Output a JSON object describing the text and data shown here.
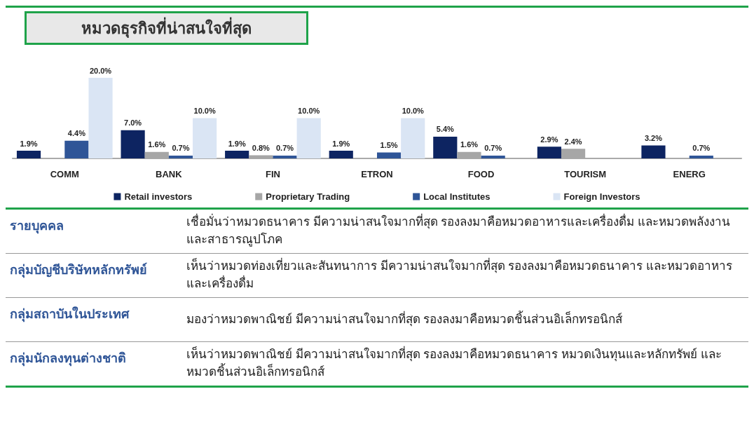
{
  "chart_data": {
    "type": "bar",
    "title": "หมวดธุรกิจที่น่าสนใจที่สุด",
    "categories": [
      "COMM",
      "BANK",
      "FIN",
      "ETRON",
      "FOOD",
      "TOURISM",
      "ENERG"
    ],
    "series": [
      {
        "name": "Retail investors",
        "color": "#0d2461",
        "values": [
          1.9,
          7.0,
          1.9,
          1.9,
          5.4,
          2.9,
          3.2
        ],
        "value_labels": [
          "1.9%",
          "7.0%",
          "1.9%",
          "1.9%",
          "5.4%",
          "2.9%",
          "3.2%"
        ]
      },
      {
        "name": "Proprietary Trading",
        "color": "#a6a6a6",
        "values": [
          null,
          1.6,
          0.8,
          null,
          1.6,
          2.4,
          null
        ],
        "value_labels": [
          null,
          "1.6%",
          "0.8%",
          null,
          "1.6%",
          "2.4%",
          null
        ]
      },
      {
        "name": "Local Institutes",
        "color": "#2f5597",
        "values": [
          4.4,
          0.7,
          0.7,
          1.5,
          0.7,
          null,
          0.7
        ],
        "value_labels": [
          "4.4%",
          "0.7%",
          "0.7%",
          "1.5%",
          "0.7%",
          null,
          "0.7%"
        ]
      },
      {
        "name": "Foreign Investors",
        "color": "#dae5f4",
        "values": [
          20.0,
          10.0,
          10.0,
          10.0,
          null,
          null,
          null
        ],
        "value_labels": [
          "20.0%",
          "10.0%",
          "10.0%",
          "10.0%",
          null,
          null,
          null
        ]
      }
    ],
    "legend": "bottom",
    "grid": false,
    "annotations": [
      "รายบุคคล",
      "เชื่อมั่นว่าหมวดธนาคาร มีความน่าสนใจมากที่สุด รองลงมาคือหมวดอาหารและเครื่องดื่ม และหมวดพลังงานและสาธารณูปโภค",
      "กลุ่มบัญชีบริษัทหลักทรัพย์",
      "เห็นว่าหมวดท่องเที่ยวและสันทนาการ มีความน่าสนใจมากที่สุด รองลงมาคือหมวดธนาคาร และหมวดอาหารและเครื่องดื่ม",
      "กลุ่มสถาบันในประเทศ",
      "มองว่าหมวดพาณิชย์ มีความน่าสนใจมากที่สุด รองลงมาคือหมวดชิ้นส่วนอิเล็กทรอนิกส์",
      "กลุ่มนักลงทุนต่างชาติ",
      "เห็นว่าหมวดพาณิชย์ มีความน่าสนใจมากที่สุด รองลงมาคือหมวดธนาคาร หมวดเงินทุนและหลักทรัพย์ และหมวดชิ้นส่วนอิเล็กทรอนิกส์"
    ]
  }
}
